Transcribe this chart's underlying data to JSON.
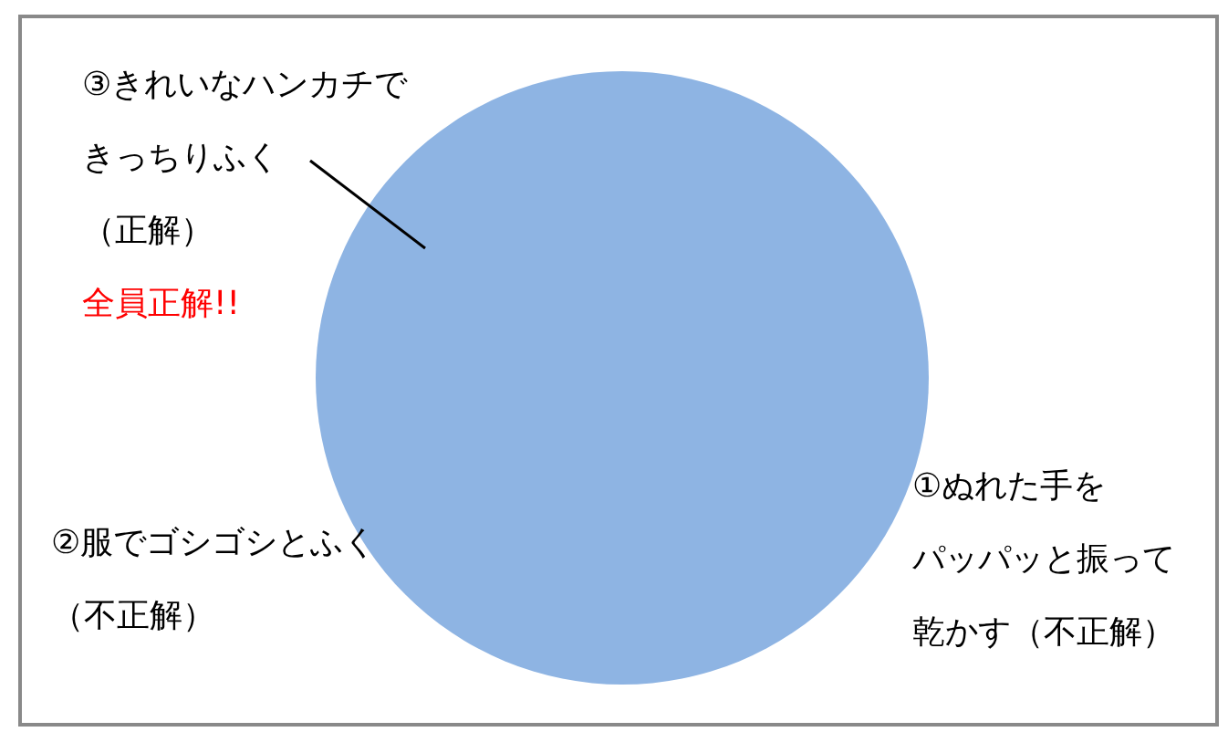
{
  "chart_data": {
    "type": "pie",
    "categories": [
      "①ぬれた手をパッパッと振って乾かす（不正解）",
      "②服でゴシゴシとふく（不正解）",
      "③きれいなハンカチできっちりふく（正解）"
    ],
    "values": [
      0,
      0,
      100
    ],
    "colors": [
      "#4f81bd",
      "#c0504d",
      "#8eb4e3"
    ],
    "annotations": [
      "全員正解!!"
    ]
  }
}
